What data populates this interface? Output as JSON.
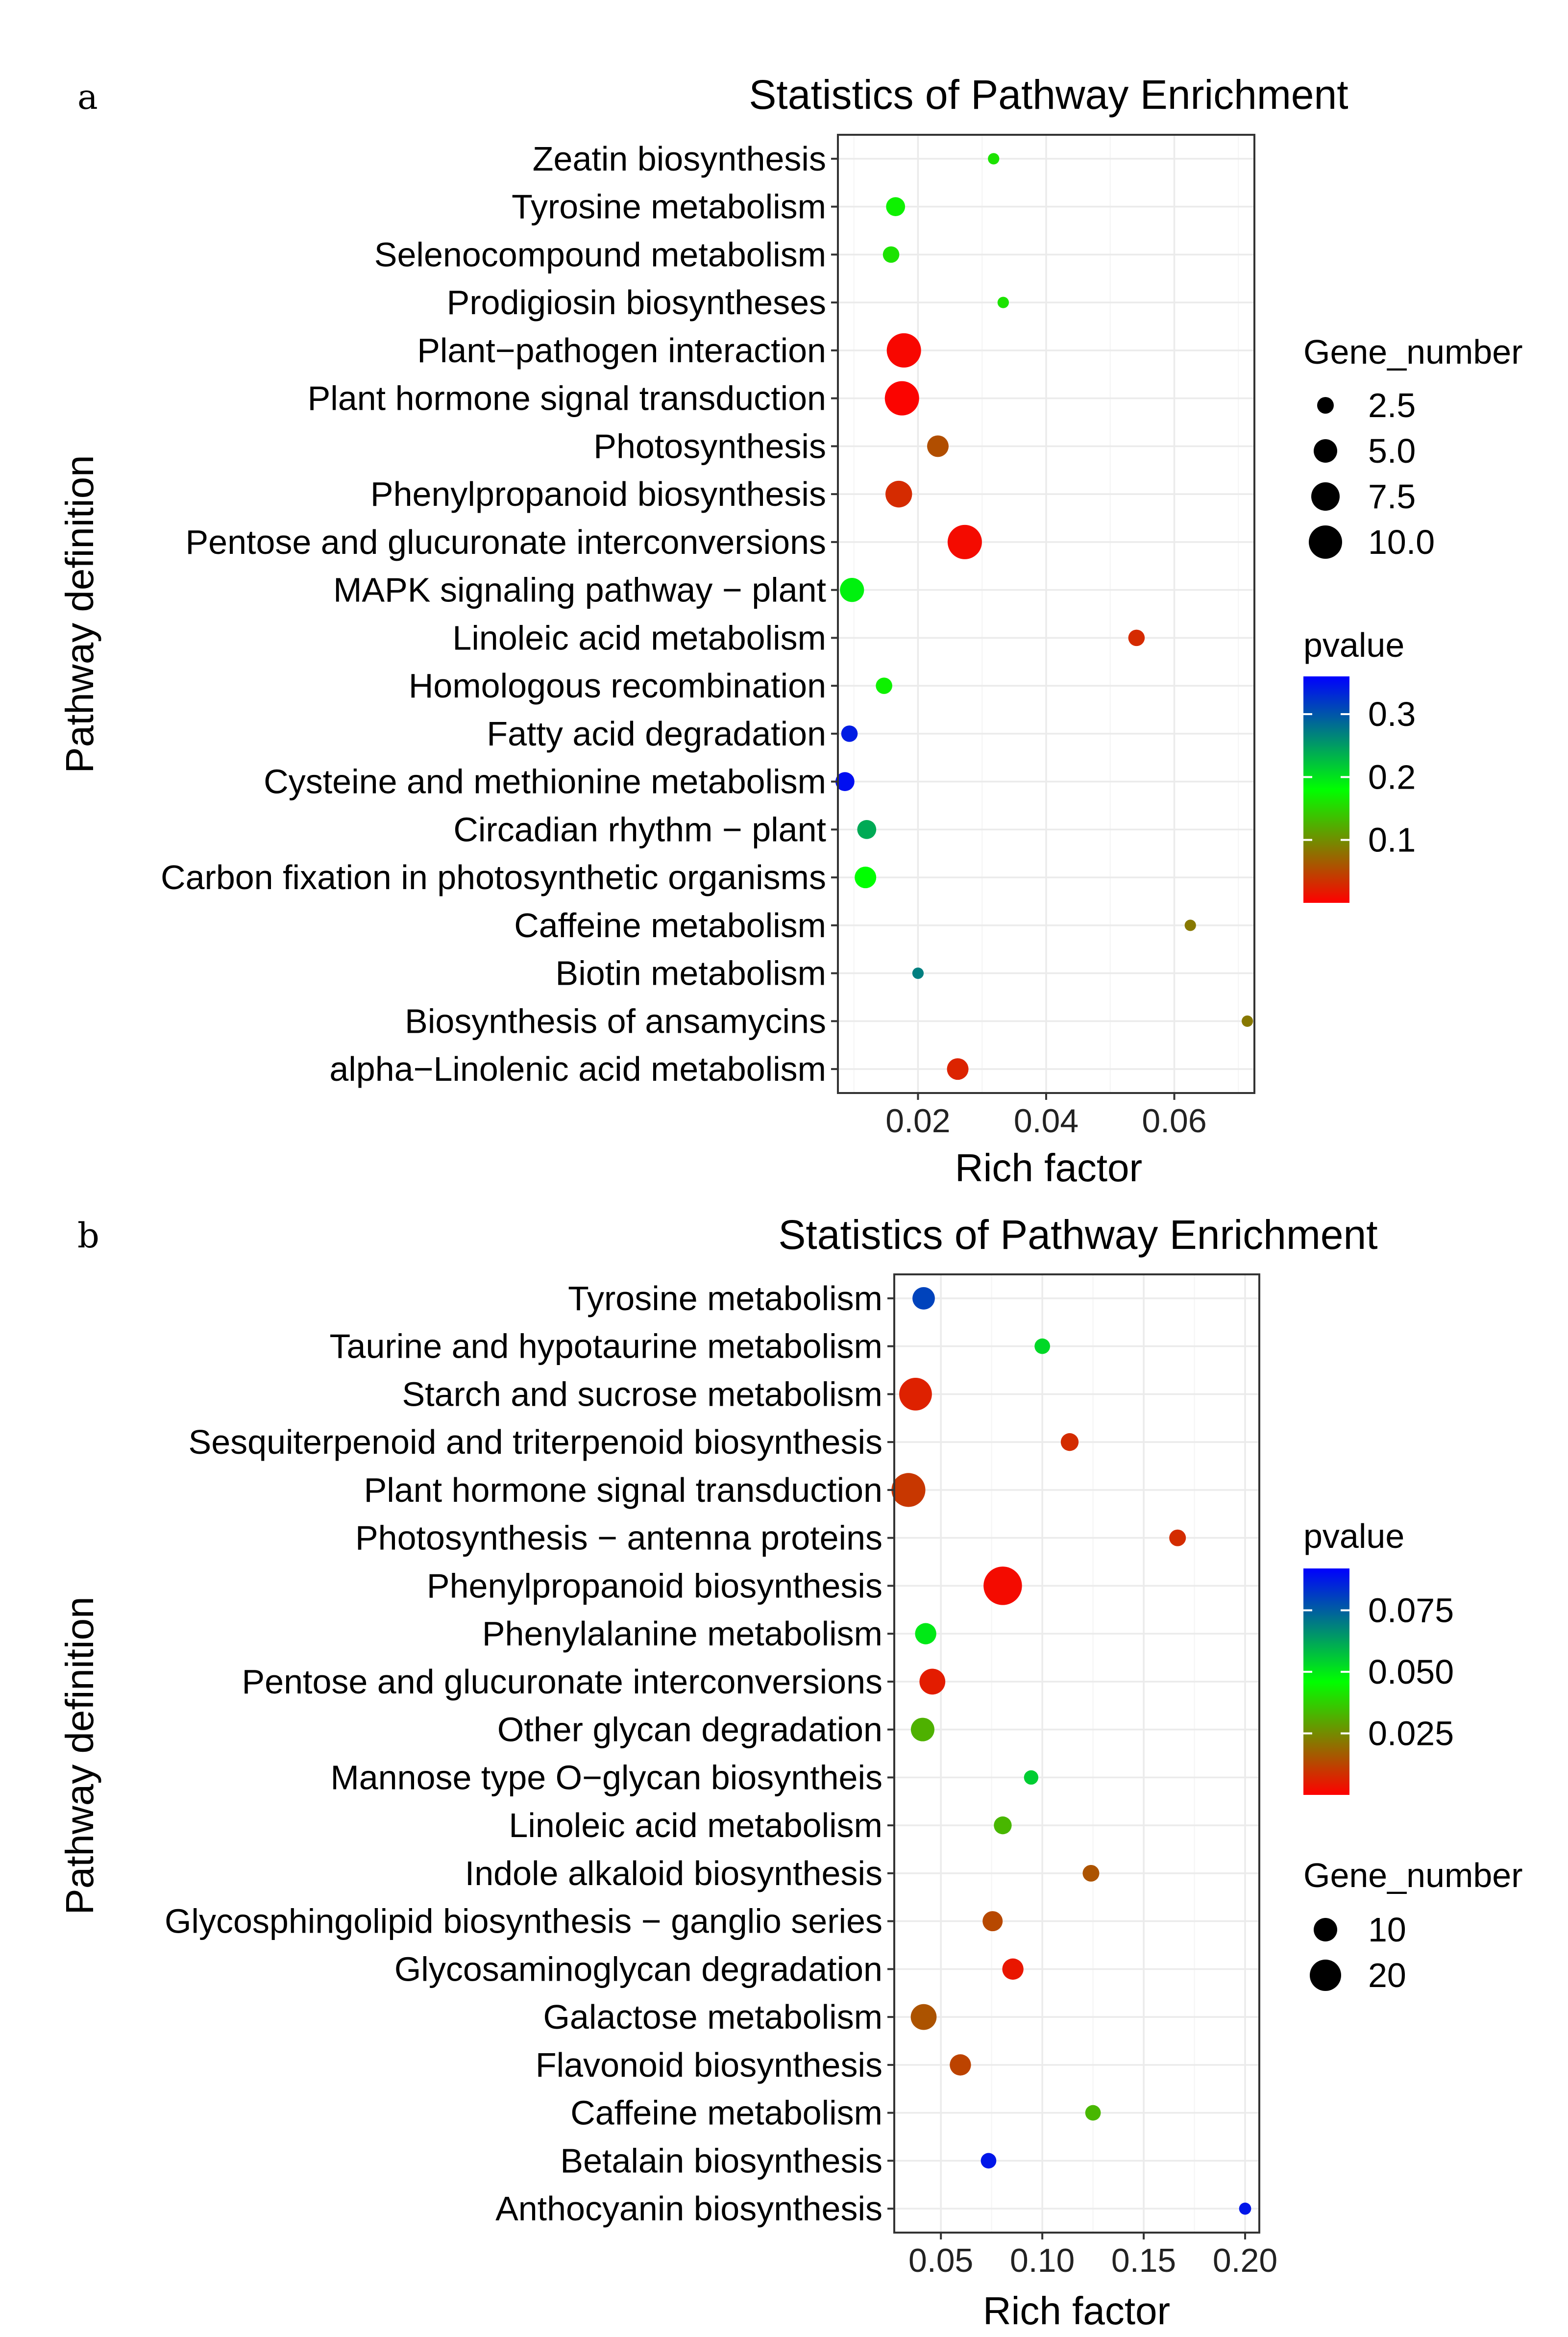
{
  "panels": [
    {
      "label": "a",
      "chart_data": {
        "type": "scatter",
        "title": "Statistics of Pathway Enrichment",
        "xlabel": "Rich factor",
        "ylabel": "Pathway definition",
        "xlim": [
          0.0075,
          0.0725
        ],
        "xticks": [
          "0.02",
          "0.04",
          "0.06"
        ],
        "xtick_values": [
          0.02,
          0.04,
          0.06
        ],
        "x_minor": [
          0.01,
          0.03,
          0.05,
          0.07
        ],
        "categories": [
          "Zeatin biosynthesis",
          "Tyrosine metabolism",
          "Selenocompound metabolism",
          "Prodigiosin biosyntheses",
          "Plant−pathogen interaction",
          "Plant hormone signal transduction",
          "Photosynthesis",
          "Phenylpropanoid biosynthesis",
          "Pentose and glucuronate interconversions",
          "MAPK signaling pathway − plant",
          "Linoleic acid metabolism",
          "Homologous recombination",
          "Fatty acid degradation",
          "Cysteine and methionine metabolism",
          "Circadian rhythm − plant",
          "Carbon fixation in photosynthetic organisms",
          "Caffeine metabolism",
          "Biotin metabolism",
          "Biosynthesis of ansamycins",
          "alpha−Linolenic acid metabolism"
        ],
        "points": [
          {
            "pathway": "Zeatin biosynthesis",
            "rich_factor": 0.0318,
            "gene_number": 1,
            "pvalue": 0.16
          },
          {
            "pathway": "Tyrosine metabolism",
            "rich_factor": 0.0165,
            "gene_number": 4,
            "pvalue": 0.17
          },
          {
            "pathway": "Selenocompound metabolism",
            "rich_factor": 0.0158,
            "gene_number": 3,
            "pvalue": 0.16
          },
          {
            "pathway": "Prodigiosin biosyntheses",
            "rich_factor": 0.0333,
            "gene_number": 1,
            "pvalue": 0.16
          },
          {
            "pathway": "Plant−pathogen interaction",
            "rich_factor": 0.0178,
            "gene_number": 10,
            "pvalue": 0.005
          },
          {
            "pathway": "Plant hormone signal transduction",
            "rich_factor": 0.0175,
            "gene_number": 10,
            "pvalue": 0.003
          },
          {
            "pathway": "Photosynthesis",
            "rich_factor": 0.0231,
            "gene_number": 5,
            "pvalue": 0.055
          },
          {
            "pathway": "Phenylpropanoid biosynthesis",
            "rich_factor": 0.017,
            "gene_number": 7,
            "pvalue": 0.03
          },
          {
            "pathway": "Pentose and glucuronate interconversions",
            "rich_factor": 0.0273,
            "gene_number": 10,
            "pvalue": 0.008
          },
          {
            "pathway": "MAPK signaling pathway − plant",
            "rich_factor": 0.0097,
            "gene_number": 6,
            "pvalue": 0.19
          },
          {
            "pathway": "Linoleic acid metabolism",
            "rich_factor": 0.0541,
            "gene_number": 3,
            "pvalue": 0.03
          },
          {
            "pathway": "Homologous recombination",
            "rich_factor": 0.0147,
            "gene_number": 3,
            "pvalue": 0.17
          },
          {
            "pathway": "Fatty acid degradation",
            "rich_factor": 0.0093,
            "gene_number": 3,
            "pvalue": 0.34
          },
          {
            "pathway": "Cysteine and methionine metabolism",
            "rich_factor": 0.0086,
            "gene_number": 4,
            "pvalue": 0.35
          },
          {
            "pathway": "Circadian rhythm − plant",
            "rich_factor": 0.012,
            "gene_number": 4,
            "pvalue": 0.24
          },
          {
            "pathway": "Carbon fixation in photosynthetic organisms",
            "rich_factor": 0.0118,
            "gene_number": 5,
            "pvalue": 0.18
          },
          {
            "pathway": "Caffeine metabolism",
            "rich_factor": 0.0625,
            "gene_number": 1,
            "pvalue": 0.085
          },
          {
            "pathway": "Biotin metabolism",
            "rich_factor": 0.02,
            "gene_number": 1,
            "pvalue": 0.27
          },
          {
            "pathway": "Biosynthesis of ansamycins",
            "rich_factor": 0.0714,
            "gene_number": 1,
            "pvalue": 0.085
          },
          {
            "pathway": "alpha−Linolenic acid metabolism",
            "rich_factor": 0.0262,
            "gene_number": 5,
            "pvalue": 0.025
          }
        ],
        "size_legend": {
          "title": "Gene_number",
          "values": [
            2.5,
            5.0,
            7.5,
            10.0
          ],
          "labels": [
            "2.5",
            "5.0",
            "7.5",
            "10.0"
          ]
        },
        "color_legend": {
          "title": "pvalue",
          "min": 0.0,
          "max": 0.36,
          "ticks": [
            0.3,
            0.2,
            0.1
          ],
          "labels": [
            "0.3",
            "0.2",
            "0.1"
          ],
          "colors": [
            "#ff0000",
            "#00ff00",
            "#0000ff"
          ]
        }
      }
    },
    {
      "label": "b",
      "chart_data": {
        "type": "scatter",
        "title": "Statistics of Pathway Enrichment",
        "xlabel": "Rich factor",
        "ylabel": "Pathway definition",
        "xlim": [
          0.027,
          0.207
        ],
        "xticks": [
          "0.05",
          "0.10",
          "0.15",
          "0.20"
        ],
        "xtick_values": [
          0.05,
          0.1,
          0.15,
          0.2
        ],
        "x_minor": [
          0.075,
          0.125,
          0.175
        ],
        "categories": [
          "Tyrosine metabolism",
          "Taurine and hypotaurine metabolism",
          "Starch and sucrose metabolism",
          "Sesquiterpenoid and triterpenoid biosynthesis",
          "Plant hormone signal transduction",
          "Photosynthesis − antenna proteins",
          "Phenylpropanoid biosynthesis",
          "Phenylalanine metabolism",
          "Pentose and glucuronate interconversions",
          "Other glycan degradation",
          "Mannose type O−glycan biosyntheis",
          "Linoleic acid metabolism",
          "Indole alkaloid biosynthesis",
          "Glycosphingolipid biosynthesis − ganglio series",
          "Glycosaminoglycan degradation",
          "Galactose metabolism",
          "Flavonoid biosynthesis",
          "Caffeine metabolism",
          "Betalain biosynthesis",
          "Anthocyanin biosynthesis"
        ],
        "points": [
          {
            "pathway": "Tyrosine metabolism",
            "rich_factor": 0.0415,
            "gene_number": 11,
            "pvalue": 0.08
          },
          {
            "pathway": "Taurine and hypotaurine metabolism",
            "rich_factor": 0.1,
            "gene_number": 5,
            "pvalue": 0.053
          },
          {
            "pathway": "Starch and sucrose metabolism",
            "rich_factor": 0.0375,
            "gene_number": 20,
            "pvalue": 0.006
          },
          {
            "pathway": "Sesquiterpenoid and triterpenoid biosynthesis",
            "rich_factor": 0.1135,
            "gene_number": 7,
            "pvalue": 0.008
          },
          {
            "pathway": "Plant hormone signal transduction",
            "rich_factor": 0.034,
            "gene_number": 21,
            "pvalue": 0.01
          },
          {
            "pathway": "Photosynthesis − antenna proteins",
            "rich_factor": 0.1667,
            "gene_number": 6,
            "pvalue": 0.008
          },
          {
            "pathway": "Phenylpropanoid biosynthesis",
            "rich_factor": 0.0805,
            "gene_number": 25,
            "pvalue": 0.002
          },
          {
            "pathway": "Phenylalanine metabolism",
            "rich_factor": 0.0425,
            "gene_number": 10,
            "pvalue": 0.05
          },
          {
            "pathway": "Pentose and glucuronate interconversions",
            "rich_factor": 0.0458,
            "gene_number": 14,
            "pvalue": 0.005
          },
          {
            "pathway": "Other glycan degradation",
            "rich_factor": 0.041,
            "gene_number": 12,
            "pvalue": 0.032
          },
          {
            "pathway": "Mannose type O−glycan biosyntheis",
            "rich_factor": 0.0945,
            "gene_number": 4,
            "pvalue": 0.055
          },
          {
            "pathway": "Linoleic acid metabolism",
            "rich_factor": 0.0805,
            "gene_number": 7,
            "pvalue": 0.033
          },
          {
            "pathway": "Indole alkaloid biosynthesis",
            "rich_factor": 0.124,
            "gene_number": 6,
            "pvalue": 0.015
          },
          {
            "pathway": "Glycosphingolipid biosynthesis − ganglio series",
            "rich_factor": 0.0755,
            "gene_number": 9,
            "pvalue": 0.013
          },
          {
            "pathway": "Glycosaminoglycan degradation",
            "rich_factor": 0.0855,
            "gene_number": 10,
            "pvalue": 0.004
          },
          {
            "pathway": "Galactose metabolism",
            "rich_factor": 0.0415,
            "gene_number": 14,
            "pvalue": 0.015
          },
          {
            "pathway": "Flavonoid biosynthesis",
            "rich_factor": 0.0596,
            "gene_number": 10,
            "pvalue": 0.012
          },
          {
            "pathway": "Caffeine metabolism",
            "rich_factor": 0.125,
            "gene_number": 5,
            "pvalue": 0.033
          },
          {
            "pathway": "Betalain biosynthesis",
            "rich_factor": 0.0735,
            "gene_number": 5,
            "pvalue": 0.088
          },
          {
            "pathway": "Anthocyanin biosynthesis",
            "rich_factor": 0.2,
            "gene_number": 2,
            "pvalue": 0.088
          }
        ],
        "size_legend": {
          "title": "Gene_number",
          "values": [
            10,
            20
          ],
          "labels": [
            "10",
            "20"
          ]
        },
        "color_legend": {
          "title": "pvalue",
          "min": 0.0,
          "max": 0.092,
          "ticks": [
            0.075,
            0.05,
            0.025
          ],
          "labels": [
            "0.075",
            "0.050",
            "0.025"
          ],
          "colors": [
            "#ff0000",
            "#00ff00",
            "#0000ff"
          ]
        }
      }
    }
  ]
}
